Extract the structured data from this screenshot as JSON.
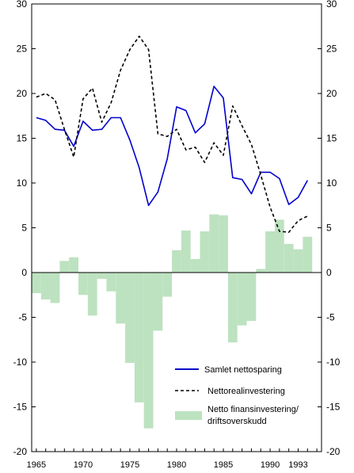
{
  "chart_data": {
    "type": "bar+line",
    "title": "",
    "xlabel": "",
    "ylabel": "",
    "ylim": [
      -20,
      30
    ],
    "yticks": [
      "30",
      "25",
      "20",
      "15",
      "10",
      "5",
      "0",
      "-5",
      "-10",
      "-15",
      "-20"
    ],
    "ytick_values": [
      30,
      25,
      20,
      15,
      10,
      5,
      0,
      -5,
      -10,
      -15,
      -20
    ],
    "xlim": [
      1965,
      1996
    ],
    "xtick_labels": [
      "1965",
      "1970",
      "1975",
      "1980",
      "1985",
      "1990",
      "1993"
    ],
    "xtick_values": [
      1965,
      1970,
      1975,
      1980,
      1985,
      1990,
      1993
    ],
    "grid": false,
    "legend_position": "bottom-right",
    "series": [
      {
        "name": "Samlet nettosparing",
        "kind": "line",
        "color": "#0000cc",
        "style": "solid",
        "x": [
          1965,
          1966,
          1967,
          1968,
          1969,
          1970,
          1971,
          1972,
          1973,
          1974,
          1975,
          1976,
          1977,
          1978,
          1979,
          1980,
          1981,
          1982,
          1983,
          1984,
          1985,
          1986,
          1987,
          1988,
          1989,
          1990,
          1991,
          1992,
          1993,
          1994
        ],
        "values": [
          17.3,
          17.0,
          16.0,
          15.9,
          14.1,
          16.9,
          15.9,
          16.0,
          17.3,
          17.3,
          14.8,
          11.7,
          7.5,
          9.0,
          12.7,
          18.5,
          18.1,
          15.6,
          16.6,
          20.8,
          19.5,
          10.6,
          10.4,
          8.8,
          11.2,
          11.2,
          10.5,
          7.6,
          8.4,
          10.3
        ]
      },
      {
        "name": "Nettorealinvestering",
        "kind": "line",
        "color": "#000000",
        "style": "dashed",
        "x": [
          1965,
          1966,
          1967,
          1968,
          1969,
          1970,
          1971,
          1972,
          1973,
          1974,
          1975,
          1976,
          1977,
          1978,
          1979,
          1980,
          1981,
          1982,
          1983,
          1984,
          1985,
          1986,
          1987,
          1988,
          1989,
          1990,
          1991,
          1992,
          1993,
          1994
        ],
        "values": [
          19.6,
          20.0,
          19.3,
          16.0,
          12.9,
          19.4,
          20.6,
          16.8,
          19.0,
          22.6,
          24.9,
          26.4,
          24.9,
          15.5,
          15.2,
          16.0,
          13.7,
          14.0,
          12.3,
          14.5,
          13.1,
          18.6,
          16.4,
          14.3,
          10.9,
          7.3,
          4.6,
          4.5,
          5.8,
          6.3
        ]
      },
      {
        "name": "Netto finansinvestering/ driftsoverskudd",
        "kind": "bar",
        "color": "#bde2c0",
        "x": [
          1965,
          1966,
          1967,
          1968,
          1969,
          1970,
          1971,
          1972,
          1973,
          1974,
          1975,
          1976,
          1977,
          1978,
          1979,
          1980,
          1981,
          1982,
          1983,
          1984,
          1985,
          1986,
          1987,
          1988,
          1989,
          1990,
          1991,
          1992,
          1993,
          1994
        ],
        "values": [
          -2.3,
          -3.0,
          -3.4,
          1.3,
          1.7,
          -2.5,
          -4.8,
          -0.7,
          -2.1,
          -5.7,
          -10.1,
          -14.5,
          -17.4,
          -6.5,
          -2.7,
          2.5,
          4.7,
          1.5,
          4.6,
          6.5,
          6.4,
          -7.8,
          -5.9,
          -5.4,
          0.4,
          4.6,
          5.9,
          3.2,
          2.6,
          4.0
        ]
      }
    ]
  },
  "legend": {
    "items": [
      {
        "label": "Samlet nettosparing",
        "swatch": "solid-line",
        "color": "#0000cc"
      },
      {
        "label": "Nettorealinvestering",
        "swatch": "dashed-line",
        "color": "#000000"
      },
      {
        "label": "Netto finansinvestering/",
        "label2": "driftsoverskudd",
        "swatch": "box",
        "color": "#bde2c0"
      }
    ]
  }
}
